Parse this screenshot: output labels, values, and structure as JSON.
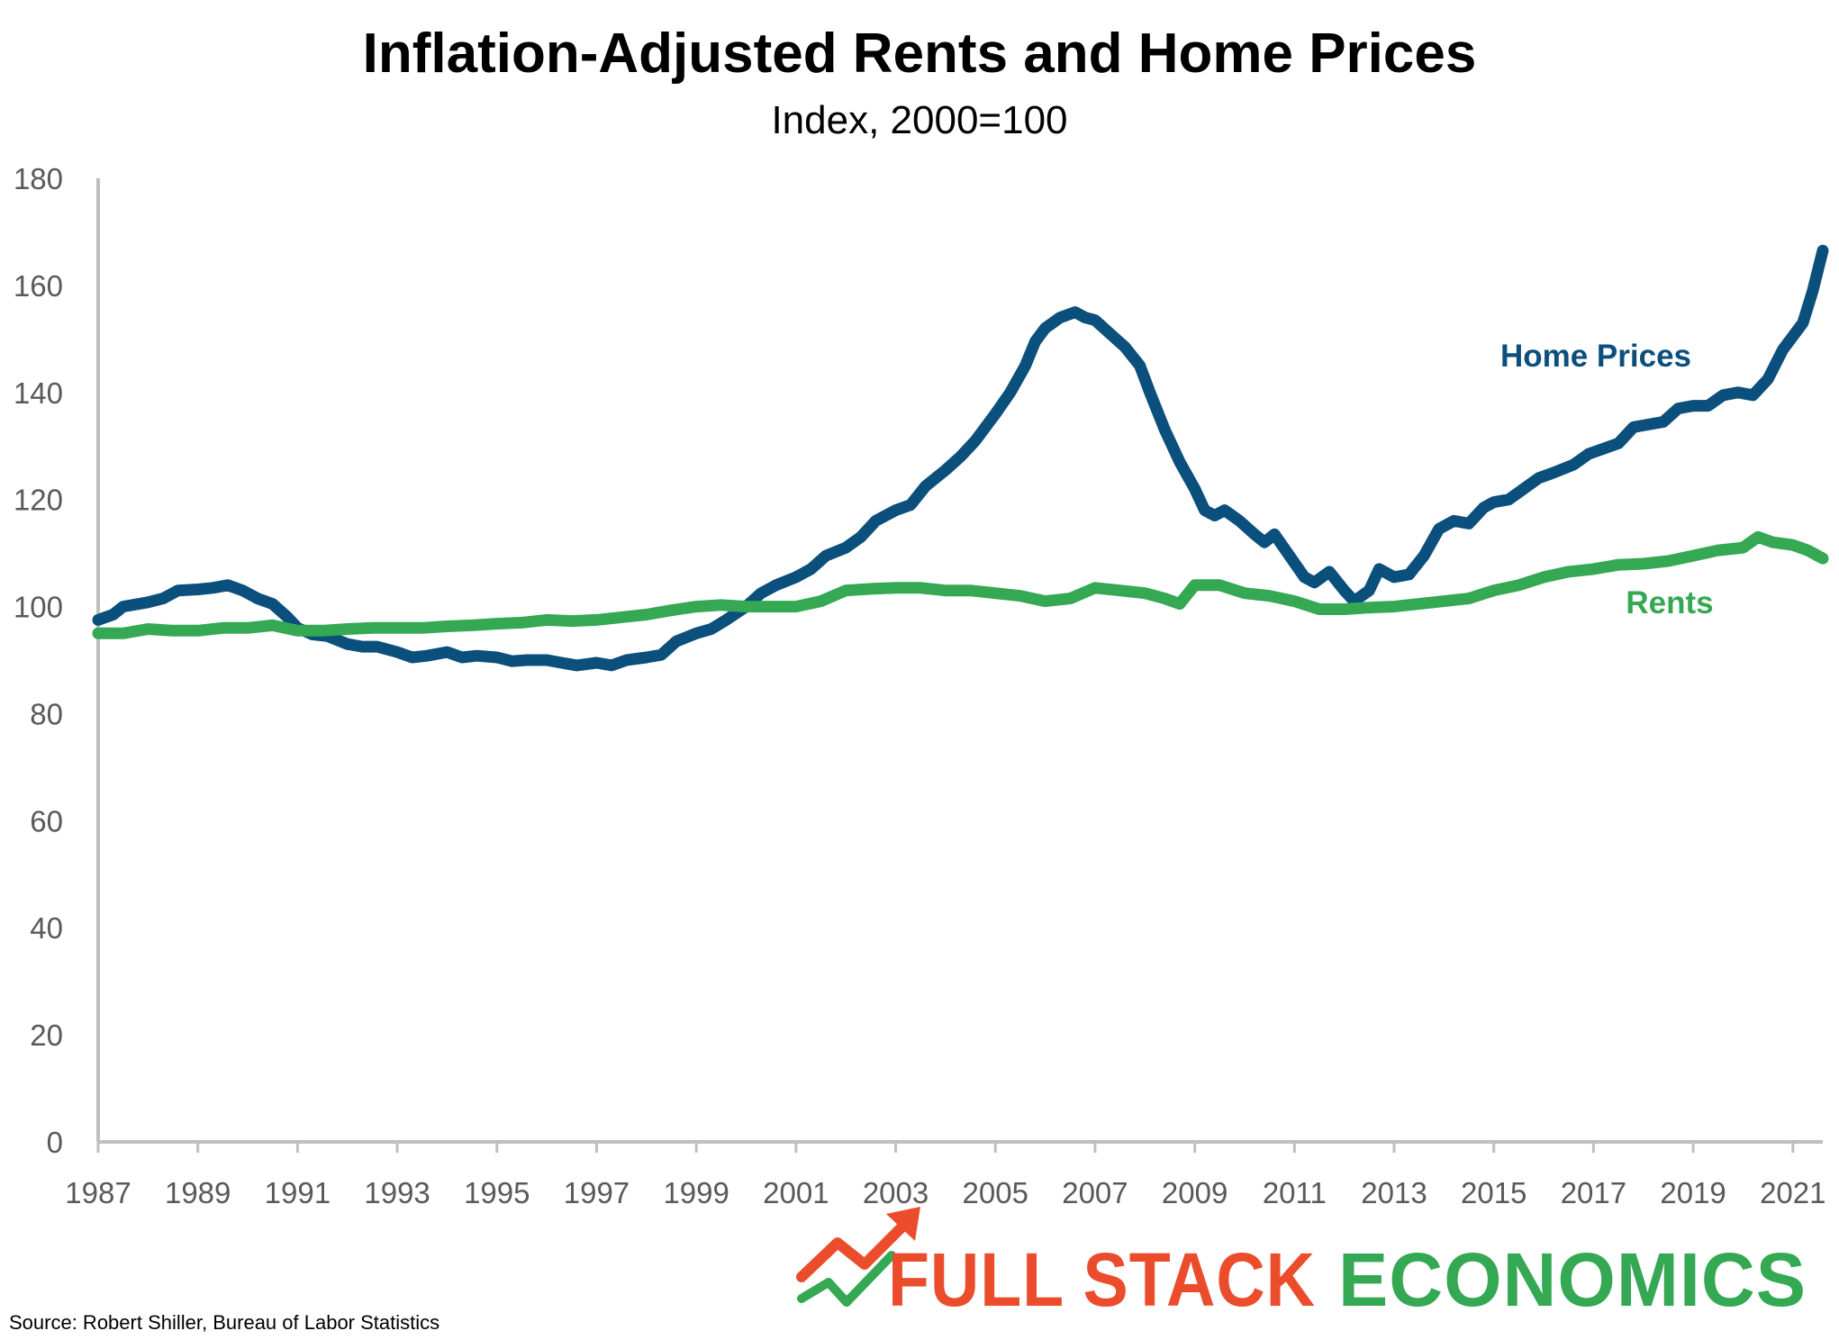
{
  "chart_data": {
    "type": "line",
    "title": "Inflation-Adjusted Rents and Home Prices",
    "subtitle": "Index, 2000=100",
    "xlabel": "",
    "ylabel": "",
    "xlim": [
      1987,
      2021.6
    ],
    "ylim": [
      0,
      180
    ],
    "y_ticks": [
      0,
      20,
      40,
      60,
      80,
      100,
      120,
      140,
      160,
      180
    ],
    "x_ticks": [
      1987,
      1989,
      1991,
      1993,
      1995,
      1997,
      1999,
      2001,
      2003,
      2005,
      2007,
      2009,
      2011,
      2013,
      2015,
      2017,
      2019,
      2021
    ],
    "grid": false,
    "legend": "inline labels at right",
    "series": [
      {
        "name": "Home Prices",
        "color": "#0b4f7c",
        "points": [
          [
            1987.0,
            97.5
          ],
          [
            1987.3,
            98.5
          ],
          [
            1987.5,
            100.0
          ],
          [
            1988.0,
            100.8
          ],
          [
            1988.3,
            101.5
          ],
          [
            1988.6,
            103.0
          ],
          [
            1989.0,
            103.2
          ],
          [
            1989.3,
            103.5
          ],
          [
            1989.6,
            104.0
          ],
          [
            1989.9,
            103.0
          ],
          [
            1990.2,
            101.5
          ],
          [
            1990.5,
            100.5
          ],
          [
            1990.8,
            98.0
          ],
          [
            1991.0,
            96.0
          ],
          [
            1991.3,
            94.8
          ],
          [
            1991.6,
            94.5
          ],
          [
            1992.0,
            93.0
          ],
          [
            1992.3,
            92.5
          ],
          [
            1992.6,
            92.5
          ],
          [
            1993.0,
            91.5
          ],
          [
            1993.3,
            90.5
          ],
          [
            1993.6,
            90.8
          ],
          [
            1994.0,
            91.5
          ],
          [
            1994.3,
            90.5
          ],
          [
            1994.6,
            90.8
          ],
          [
            1995.0,
            90.5
          ],
          [
            1995.3,
            89.8
          ],
          [
            1995.6,
            90.0
          ],
          [
            1996.0,
            90.0
          ],
          [
            1996.3,
            89.5
          ],
          [
            1996.6,
            89.0
          ],
          [
            1997.0,
            89.5
          ],
          [
            1997.3,
            89.0
          ],
          [
            1997.6,
            90.0
          ],
          [
            1998.0,
            90.5
          ],
          [
            1998.3,
            91.0
          ],
          [
            1998.6,
            93.5
          ],
          [
            1999.0,
            95.0
          ],
          [
            1999.3,
            95.8
          ],
          [
            1999.6,
            97.5
          ],
          [
            2000.0,
            100.0
          ],
          [
            2000.3,
            102.5
          ],
          [
            2000.6,
            104.0
          ],
          [
            2001.0,
            105.5
          ],
          [
            2001.3,
            107.0
          ],
          [
            2001.6,
            109.5
          ],
          [
            2002.0,
            111.0
          ],
          [
            2002.3,
            113.0
          ],
          [
            2002.6,
            116.0
          ],
          [
            2003.0,
            118.0
          ],
          [
            2003.3,
            119.0
          ],
          [
            2003.6,
            122.5
          ],
          [
            2004.0,
            125.5
          ],
          [
            2004.3,
            128.0
          ],
          [
            2004.6,
            131.0
          ],
          [
            2005.0,
            136.0
          ],
          [
            2005.3,
            140.0
          ],
          [
            2005.6,
            145.0
          ],
          [
            2005.8,
            149.5
          ],
          [
            2006.0,
            152.0
          ],
          [
            2006.3,
            154.0
          ],
          [
            2006.6,
            155.0
          ],
          [
            2006.8,
            154.0
          ],
          [
            2007.0,
            153.5
          ],
          [
            2007.3,
            151.0
          ],
          [
            2007.6,
            148.5
          ],
          [
            2007.9,
            145.0
          ],
          [
            2008.1,
            140.0
          ],
          [
            2008.4,
            133.0
          ],
          [
            2008.7,
            127.0
          ],
          [
            2009.0,
            122.0
          ],
          [
            2009.2,
            118.0
          ],
          [
            2009.4,
            117.0
          ],
          [
            2009.6,
            118.0
          ],
          [
            2009.9,
            116.0
          ],
          [
            2010.2,
            113.5
          ],
          [
            2010.4,
            112.0
          ],
          [
            2010.6,
            113.5
          ],
          [
            2010.9,
            109.5
          ],
          [
            2011.2,
            105.5
          ],
          [
            2011.4,
            104.5
          ],
          [
            2011.7,
            106.5
          ],
          [
            2012.0,
            103.0
          ],
          [
            2012.2,
            101.0
          ],
          [
            2012.5,
            103.0
          ],
          [
            2012.7,
            107.0
          ],
          [
            2013.0,
            105.5
          ],
          [
            2013.3,
            106.0
          ],
          [
            2013.6,
            109.5
          ],
          [
            2013.9,
            114.5
          ],
          [
            2014.2,
            116.0
          ],
          [
            2014.5,
            115.5
          ],
          [
            2014.8,
            118.5
          ],
          [
            2015.0,
            119.5
          ],
          [
            2015.3,
            120.0
          ],
          [
            2015.6,
            122.0
          ],
          [
            2015.9,
            124.0
          ],
          [
            2016.2,
            125.0
          ],
          [
            2016.6,
            126.5
          ],
          [
            2016.9,
            128.5
          ],
          [
            2017.2,
            129.5
          ],
          [
            2017.5,
            130.5
          ],
          [
            2017.8,
            133.5
          ],
          [
            2018.1,
            134.0
          ],
          [
            2018.4,
            134.5
          ],
          [
            2018.7,
            137.0
          ],
          [
            2019.0,
            137.5
          ],
          [
            2019.3,
            137.5
          ],
          [
            2019.6,
            139.5
          ],
          [
            2019.9,
            140.0
          ],
          [
            2020.2,
            139.5
          ],
          [
            2020.5,
            142.5
          ],
          [
            2020.8,
            148.0
          ],
          [
            2021.0,
            150.5
          ],
          [
            2021.2,
            153.0
          ],
          [
            2021.4,
            159.0
          ],
          [
            2021.6,
            166.5
          ]
        ]
      },
      {
        "name": "Rents",
        "color": "#34a853",
        "points": [
          [
            1987.0,
            95.0
          ],
          [
            1987.5,
            95.0
          ],
          [
            1988.0,
            95.8
          ],
          [
            1988.5,
            95.5
          ],
          [
            1989.0,
            95.5
          ],
          [
            1989.5,
            96.0
          ],
          [
            1990.0,
            96.0
          ],
          [
            1990.5,
            96.5
          ],
          [
            1991.0,
            95.5
          ],
          [
            1991.5,
            95.5
          ],
          [
            1992.0,
            95.8
          ],
          [
            1992.5,
            96.0
          ],
          [
            1993.0,
            96.0
          ],
          [
            1993.5,
            96.0
          ],
          [
            1994.0,
            96.3
          ],
          [
            1994.5,
            96.5
          ],
          [
            1995.0,
            96.8
          ],
          [
            1995.5,
            97.0
          ],
          [
            1996.0,
            97.5
          ],
          [
            1996.5,
            97.3
          ],
          [
            1997.0,
            97.5
          ],
          [
            1997.5,
            98.0
          ],
          [
            1998.0,
            98.5
          ],
          [
            1998.5,
            99.3
          ],
          [
            1999.0,
            100.0
          ],
          [
            1999.5,
            100.3
          ],
          [
            2000.0,
            100.0
          ],
          [
            2000.5,
            100.0
          ],
          [
            2001.0,
            100.0
          ],
          [
            2001.5,
            101.0
          ],
          [
            2002.0,
            103.0
          ],
          [
            2002.5,
            103.3
          ],
          [
            2003.0,
            103.5
          ],
          [
            2003.5,
            103.5
          ],
          [
            2004.0,
            103.0
          ],
          [
            2004.5,
            103.0
          ],
          [
            2005.0,
            102.5
          ],
          [
            2005.5,
            102.0
          ],
          [
            2006.0,
            101.0
          ],
          [
            2006.5,
            101.5
          ],
          [
            2007.0,
            103.5
          ],
          [
            2007.5,
            103.0
          ],
          [
            2008.0,
            102.5
          ],
          [
            2008.4,
            101.5
          ],
          [
            2008.7,
            100.5
          ],
          [
            2009.0,
            104.0
          ],
          [
            2009.5,
            104.0
          ],
          [
            2010.0,
            102.5
          ],
          [
            2010.5,
            102.0
          ],
          [
            2011.0,
            101.0
          ],
          [
            2011.5,
            99.5
          ],
          [
            2012.0,
            99.5
          ],
          [
            2012.5,
            99.8
          ],
          [
            2013.0,
            100.0
          ],
          [
            2013.5,
            100.5
          ],
          [
            2014.0,
            101.0
          ],
          [
            2014.5,
            101.5
          ],
          [
            2015.0,
            103.0
          ],
          [
            2015.5,
            104.0
          ],
          [
            2016.0,
            105.5
          ],
          [
            2016.5,
            106.5
          ],
          [
            2017.0,
            107.0
          ],
          [
            2017.5,
            107.8
          ],
          [
            2018.0,
            108.0
          ],
          [
            2018.5,
            108.5
          ],
          [
            2019.0,
            109.5
          ],
          [
            2019.5,
            110.5
          ],
          [
            2020.0,
            111.0
          ],
          [
            2020.3,
            113.0
          ],
          [
            2020.6,
            112.0
          ],
          [
            2021.0,
            111.5
          ],
          [
            2021.3,
            110.5
          ],
          [
            2021.6,
            109.0
          ]
        ]
      }
    ],
    "annotations": [
      {
        "text": "Home Prices",
        "series": "Home Prices"
      },
      {
        "text": "Rents",
        "series": "Rents"
      }
    ]
  },
  "footer": {
    "source": "Source: Robert Shiller, Bureau of Labor Statistics"
  },
  "logo": {
    "word1": "FULL STACK",
    "word2": "ECONOMICS",
    "color1": "#ea4c2c",
    "color2": "#34a853"
  },
  "colors": {
    "axis": "#bfbfbf",
    "tick_text": "#595959"
  }
}
